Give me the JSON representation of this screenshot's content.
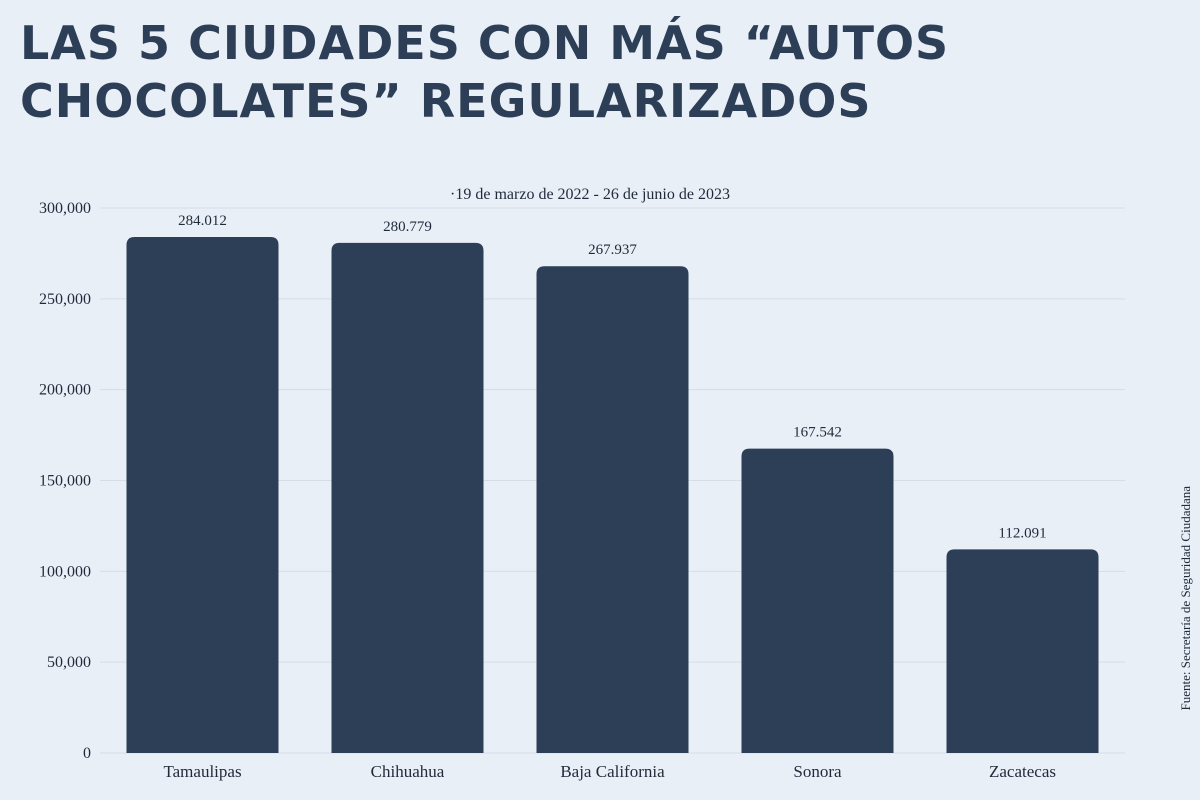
{
  "header": {
    "title_line1": "LAS 5 CIUDADES CON MÁS “AUTOS",
    "title_line2": "CHOCOLATES” REGULARIZADOS"
  },
  "subtitle": "·19 de marzo de 2022 - 26 de junio de 2023",
  "source": "Fuente: Secretaría de Seguridad  Ciudadana",
  "colors": {
    "background": "#e9eff7",
    "bar": "#2d3e57",
    "title": "#2d3e57",
    "grid": "#d6dde8"
  },
  "chart_data": {
    "type": "bar",
    "categories": [
      "Tamaulipas",
      "Chihuahua",
      "Baja California",
      "Sonora",
      "Zacatecas"
    ],
    "values": [
      284012,
      280779,
      267937,
      167542,
      112091
    ],
    "value_labels": [
      "284.012",
      "280.779",
      "267.937",
      "167.542",
      "112.091"
    ],
    "yticks": [
      0,
      50000,
      100000,
      150000,
      200000,
      250000,
      300000
    ],
    "ytick_labels": [
      "0",
      "50,000",
      "100,000",
      "150,000",
      "200,000",
      "250,000",
      "300,000"
    ],
    "ylim": [
      0,
      300000
    ],
    "grid": true,
    "legend": "none"
  }
}
